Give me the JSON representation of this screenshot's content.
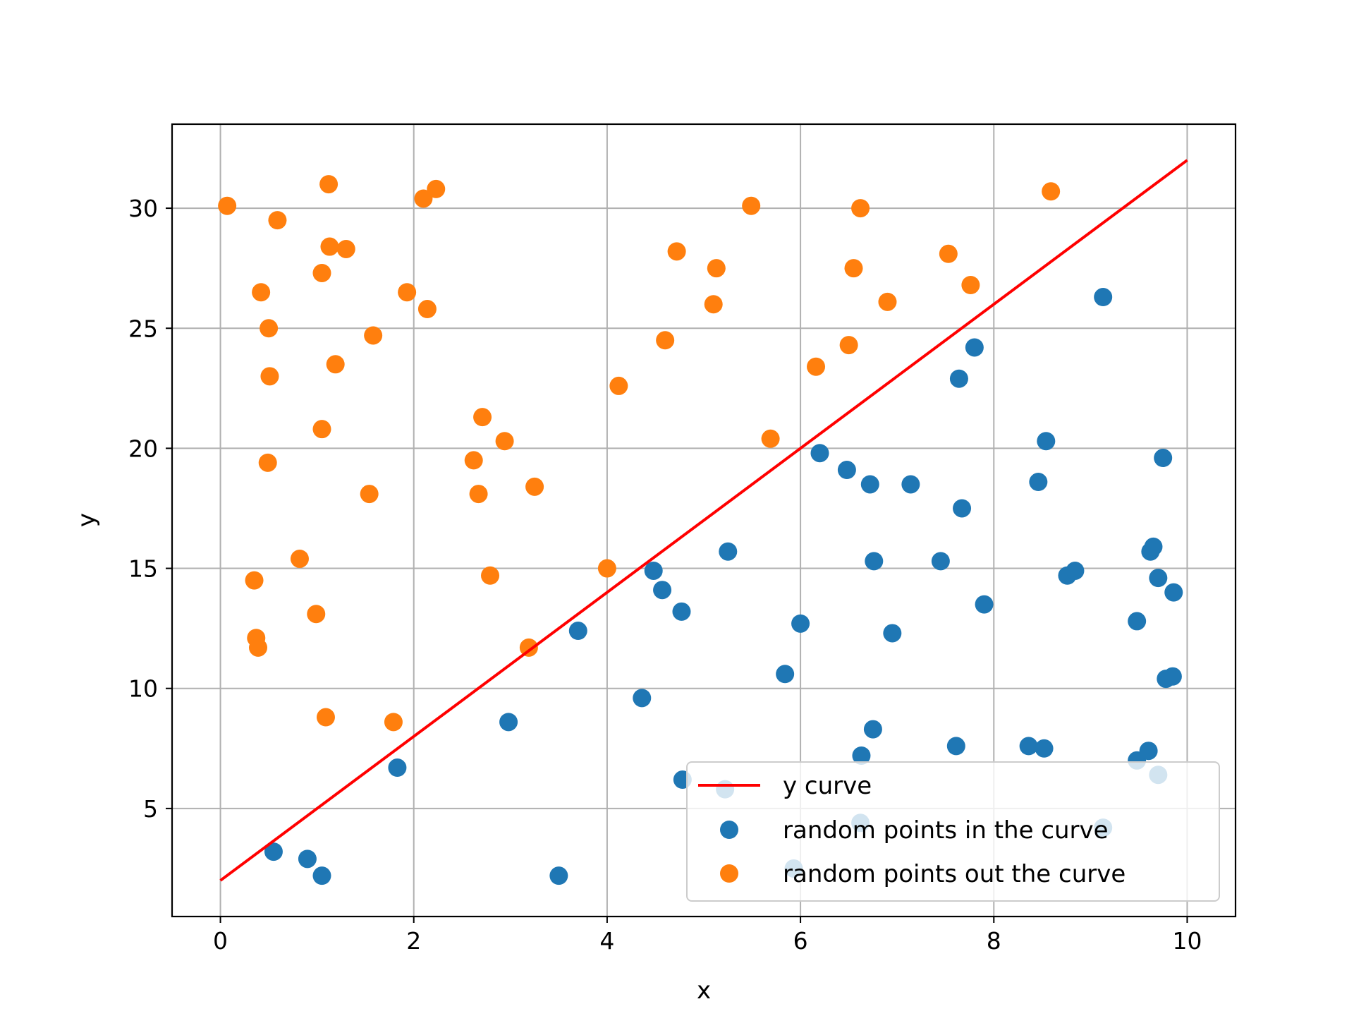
{
  "chart_data": {
    "type": "scatter",
    "xlabel": "x",
    "ylabel": "y",
    "xlim": [
      -0.5,
      10.5
    ],
    "ylim": [
      0.5,
      33.5
    ],
    "xticks": [
      0,
      2,
      4,
      6,
      8,
      10
    ],
    "yticks": [
      5,
      10,
      15,
      20,
      25,
      30
    ],
    "grid": true,
    "legend_position": "bottom-right",
    "colors": {
      "line": "#ff0000",
      "inside": "#1f77b4",
      "outside": "#ff7f0e"
    },
    "line": {
      "name": "y curve",
      "x": [
        0,
        10
      ],
      "y": [
        2,
        32
      ]
    },
    "series": [
      {
        "name": "random points in the curve",
        "color": "#1f77b4",
        "points": [
          [
            0.55,
            3.2
          ],
          [
            0.9,
            2.9
          ],
          [
            1.05,
            2.2
          ],
          [
            1.83,
            6.7
          ],
          [
            2.98,
            8.6
          ],
          [
            3.5,
            2.2
          ],
          [
            3.7,
            12.4
          ],
          [
            4.36,
            9.6
          ],
          [
            4.48,
            14.9
          ],
          [
            4.57,
            14.1
          ],
          [
            4.77,
            13.2
          ],
          [
            4.78,
            6.2
          ],
          [
            5.25,
            15.7
          ],
          [
            5.22,
            5.8
          ],
          [
            5.84,
            10.6
          ],
          [
            5.93,
            2.5
          ],
          [
            6.0,
            12.7
          ],
          [
            6.2,
            19.8
          ],
          [
            6.48,
            19.1
          ],
          [
            6.63,
            7.2
          ],
          [
            6.62,
            4.4
          ],
          [
            6.72,
            18.5
          ],
          [
            6.76,
            15.3
          ],
          [
            6.75,
            8.3
          ],
          [
            6.95,
            12.3
          ],
          [
            7.14,
            18.5
          ],
          [
            7.45,
            15.3
          ],
          [
            7.61,
            7.6
          ],
          [
            7.64,
            22.9
          ],
          [
            7.67,
            17.5
          ],
          [
            7.8,
            24.2
          ],
          [
            7.9,
            13.5
          ],
          [
            8.36,
            7.6
          ],
          [
            8.46,
            18.6
          ],
          [
            8.52,
            7.5
          ],
          [
            8.54,
            20.3
          ],
          [
            8.76,
            14.7
          ],
          [
            8.84,
            14.9
          ],
          [
            9.13,
            26.3
          ],
          [
            9.13,
            4.2
          ],
          [
            9.48,
            12.8
          ],
          [
            9.48,
            7.0
          ],
          [
            9.6,
            7.4
          ],
          [
            9.62,
            15.7
          ],
          [
            9.65,
            15.9
          ],
          [
            9.7,
            14.6
          ],
          [
            9.7,
            6.4
          ],
          [
            9.75,
            19.6
          ],
          [
            9.78,
            10.4
          ],
          [
            9.85,
            10.5
          ],
          [
            9.86,
            14.0
          ]
        ]
      },
      {
        "name": "random points out the curve",
        "color": "#ff7f0e",
        "points": [
          [
            0.07,
            30.1
          ],
          [
            0.35,
            14.5
          ],
          [
            0.37,
            12.1
          ],
          [
            0.39,
            11.7
          ],
          [
            0.42,
            26.5
          ],
          [
            0.49,
            19.4
          ],
          [
            0.5,
            25.0
          ],
          [
            0.51,
            23.0
          ],
          [
            0.59,
            29.5
          ],
          [
            0.82,
            15.4
          ],
          [
            0.99,
            13.1
          ],
          [
            1.05,
            27.3
          ],
          [
            1.05,
            20.8
          ],
          [
            1.09,
            8.8
          ],
          [
            1.12,
            31.0
          ],
          [
            1.13,
            28.4
          ],
          [
            1.19,
            23.5
          ],
          [
            1.3,
            28.3
          ],
          [
            1.54,
            18.1
          ],
          [
            1.58,
            24.7
          ],
          [
            1.79,
            8.6
          ],
          [
            1.93,
            26.5
          ],
          [
            2.1,
            30.4
          ],
          [
            2.14,
            25.8
          ],
          [
            2.23,
            30.8
          ],
          [
            2.62,
            19.5
          ],
          [
            2.67,
            18.1
          ],
          [
            2.71,
            21.3
          ],
          [
            2.79,
            14.7
          ],
          [
            2.94,
            20.3
          ],
          [
            3.19,
            11.7
          ],
          [
            3.25,
            18.4
          ],
          [
            4.0,
            15.0
          ],
          [
            4.12,
            22.6
          ],
          [
            4.6,
            24.5
          ],
          [
            4.72,
            28.2
          ],
          [
            5.1,
            26.0
          ],
          [
            5.13,
            27.5
          ],
          [
            5.49,
            30.1
          ],
          [
            5.69,
            20.4
          ],
          [
            6.16,
            23.4
          ],
          [
            6.5,
            24.3
          ],
          [
            6.55,
            27.5
          ],
          [
            6.62,
            30.0
          ],
          [
            6.9,
            26.1
          ],
          [
            7.53,
            28.1
          ],
          [
            7.76,
            26.8
          ],
          [
            8.59,
            30.7
          ]
        ]
      }
    ]
  }
}
